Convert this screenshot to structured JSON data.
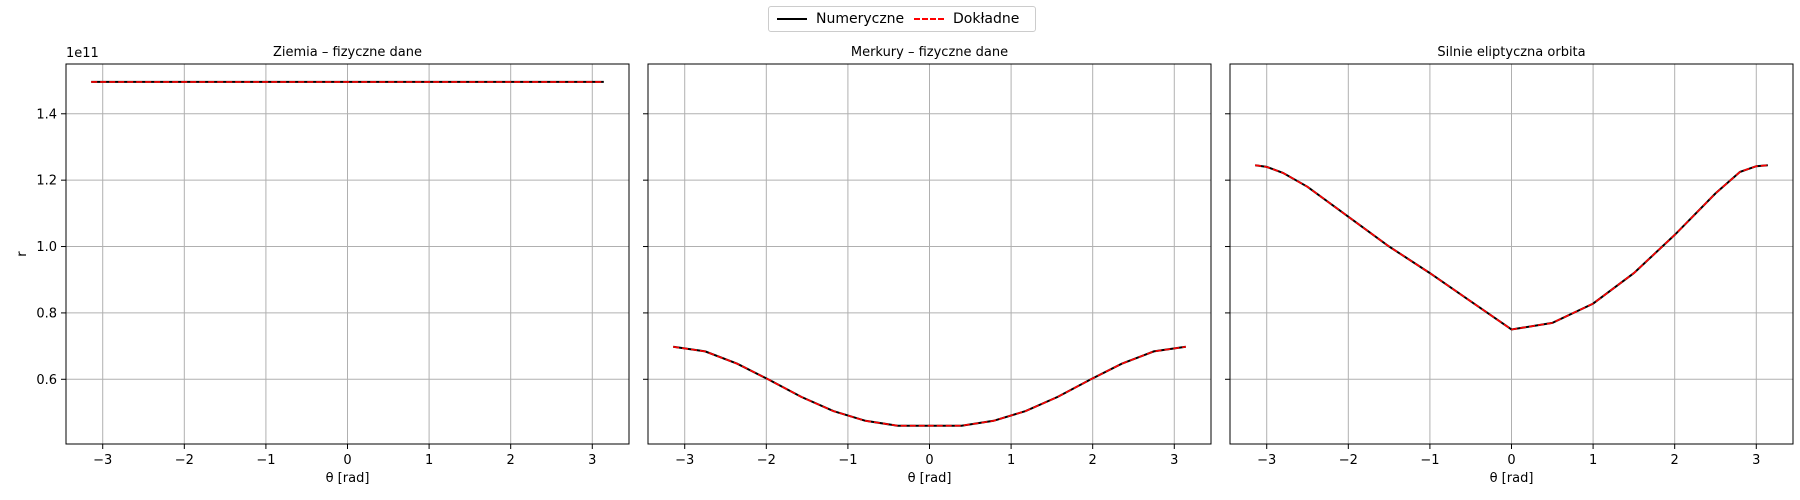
{
  "legend": {
    "numeric_label": "Numeryczne",
    "exact_label": "Dokładne",
    "numeric_color": "#000000",
    "exact_color": "#ff0000"
  },
  "chart_data": [
    {
      "type": "line",
      "title": "Ziemia – fizyczne dane",
      "xlabel": "θ [rad]",
      "ylabel": "r",
      "y_offset_text": "1e11",
      "xlim": [
        -3.45,
        3.45
      ],
      "ylim": [
        0.405,
        1.55
      ],
      "xticks": [
        -3,
        -2,
        -1,
        0,
        1,
        2,
        3
      ],
      "yticks": [
        0.6,
        0.8,
        1.0,
        1.2,
        1.4
      ],
      "grid": true,
      "x": [
        -3.1416,
        -2.3562,
        -1.5708,
        -0.7854,
        0,
        0.7854,
        1.5708,
        2.3562,
        3.1416
      ],
      "series": [
        {
          "name": "Numeryczne",
          "values": [
            1.496,
            1.496,
            1.496,
            1.496,
            1.496,
            1.496,
            1.496,
            1.496,
            1.496
          ]
        },
        {
          "name": "Dokładne",
          "values": [
            1.496,
            1.496,
            1.496,
            1.496,
            1.496,
            1.496,
            1.496,
            1.496,
            1.496
          ]
        }
      ]
    },
    {
      "type": "line",
      "title": "Merkury – fizyczne dane",
      "xlabel": "θ [rad]",
      "ylabel": "",
      "xlim": [
        -3.45,
        3.45
      ],
      "ylim": [
        0.405,
        1.55
      ],
      "xticks": [
        -3,
        -2,
        -1,
        0,
        1,
        2,
        3
      ],
      "yticks": [
        0.6,
        0.8,
        1.0,
        1.2,
        1.4
      ],
      "grid": true,
      "x": [
        -3.1416,
        -2.7489,
        -2.3562,
        -1.9635,
        -1.5708,
        -1.1781,
        -0.7854,
        -0.3927,
        0,
        0.3927,
        0.7854,
        1.1781,
        1.5708,
        1.9635,
        2.3562,
        2.7489,
        3.1416
      ],
      "series": [
        {
          "name": "Numeryczne",
          "values": [
            0.698,
            0.684,
            0.647,
            0.598,
            0.547,
            0.504,
            0.475,
            0.46,
            0.46,
            0.46,
            0.475,
            0.504,
            0.547,
            0.598,
            0.647,
            0.684,
            0.698
          ]
        },
        {
          "name": "Dokładne",
          "values": [
            0.698,
            0.684,
            0.647,
            0.598,
            0.547,
            0.504,
            0.475,
            0.46,
            0.46,
            0.46,
            0.475,
            0.504,
            0.547,
            0.598,
            0.647,
            0.684,
            0.698
          ]
        }
      ]
    },
    {
      "type": "line",
      "title": "Silnie eliptyczna orbita",
      "xlabel": "θ [rad]",
      "ylabel": "",
      "xlim": [
        -3.45,
        3.45
      ],
      "ylim": [
        0.405,
        1.55
      ],
      "xticks": [
        -3,
        -2,
        -1,
        0,
        1,
        2,
        3
      ],
      "yticks": [
        0.6,
        0.8,
        1.0,
        1.2,
        1.4
      ],
      "grid": true,
      "x": [
        -3.1416,
        -3.0,
        -2.8,
        -2.5,
        -2.0,
        -1.5,
        -1.0,
        -0.5,
        0,
        0.5,
        1.0,
        1.5,
        2.0,
        2.5,
        2.8,
        3.0,
        3.1416
      ],
      "series": [
        {
          "name": "Numeryczne",
          "values": [
            1.245,
            1.24,
            1.222,
            1.18,
            1.09,
            1.0,
            0.92,
            0.835,
            0.75,
            0.77,
            0.828,
            0.92,
            1.035,
            1.16,
            1.225,
            1.242,
            1.245
          ]
        },
        {
          "name": "Dokładne",
          "values": [
            1.245,
            1.24,
            1.222,
            1.18,
            1.09,
            1.0,
            0.92,
            0.835,
            0.75,
            0.77,
            0.828,
            0.92,
            1.035,
            1.16,
            1.225,
            1.242,
            1.245
          ]
        }
      ]
    }
  ]
}
